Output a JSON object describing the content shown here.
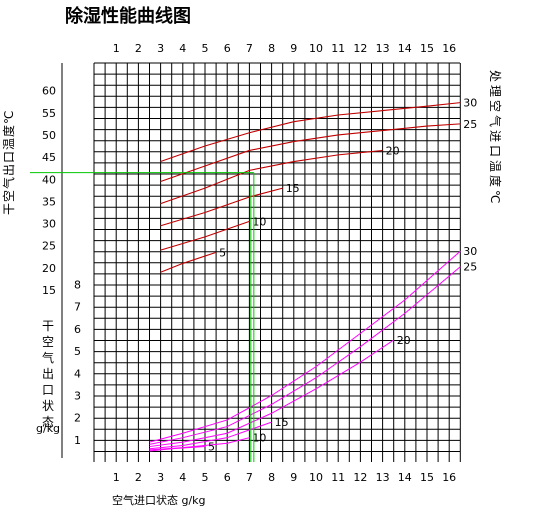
{
  "chart_data": {
    "type": "line",
    "title": "除湿性能曲线图",
    "xlabel": "空气进口状态 g/kg",
    "top_ylabel": "干空气出口温度℃",
    "bottom_ylabel_chars": [
      "干",
      "空",
      "气",
      "出",
      "口",
      "状",
      "态"
    ],
    "bottom_ylabel_unit": "g/kg",
    "right_ylabel": "处理空气进口温度℃",
    "x_ticks": [
      "1",
      "2",
      "3",
      "4",
      "5",
      "6",
      "7",
      "8",
      "9",
      "10",
      "11",
      "12",
      "13",
      "14",
      "15",
      "16"
    ],
    "x_range": [
      0,
      16.5
    ],
    "top_y_ticks": [
      "60",
      "55",
      "50",
      "45",
      "40",
      "35",
      "30",
      "25",
      "20",
      "15"
    ],
    "top_y_range": [
      15,
      65
    ],
    "bottom_y_ticks": [
      "8",
      "7",
      "6",
      "5",
      "4",
      "3",
      "2",
      "1"
    ],
    "bottom_y_range": [
      0,
      8.5
    ],
    "temperature_series": [
      {
        "name": "30",
        "x": [
          3,
          5,
          7,
          9,
          11,
          13,
          15,
          16.5
        ],
        "y": [
          44,
          47.5,
          50.5,
          53,
          54.5,
          55.5,
          56.5,
          57.3
        ]
      },
      {
        "name": "25",
        "x": [
          3,
          5,
          7,
          9,
          11,
          13,
          15,
          16.5
        ],
        "y": [
          39.5,
          43,
          46.5,
          48.5,
          50,
          51,
          52,
          52.5
        ]
      },
      {
        "name": "20",
        "x": [
          3,
          5,
          7,
          9,
          11,
          13
        ],
        "y": [
          34.5,
          38,
          42,
          44,
          45.5,
          46.5
        ]
      },
      {
        "name": "15",
        "x": [
          3,
          5,
          7,
          8.5
        ],
        "y": [
          29.5,
          32.5,
          36,
          38
        ]
      },
      {
        "name": "10",
        "x": [
          3,
          5,
          7
        ],
        "y": [
          24,
          27,
          30.5
        ]
      },
      {
        "name": "5",
        "x": [
          3,
          4,
          5.5
        ],
        "y": [
          19,
          21,
          23.5
        ]
      }
    ],
    "humidity_series": [
      {
        "name": "30",
        "x": [
          2.5,
          4,
          6,
          8,
          10,
          12,
          14,
          16.5
        ],
        "y": [
          0.4,
          0.8,
          1.4,
          2.5,
          3.8,
          5.3,
          6.8,
          9.0
        ]
      },
      {
        "name": "25",
        "x": [
          2.5,
          4,
          6,
          8,
          10,
          12,
          14,
          16.5
        ],
        "y": [
          0.3,
          0.6,
          1.1,
          2.1,
          3.3,
          4.7,
          6.2,
          8.3
        ]
      },
      {
        "name": "20",
        "x": [
          2.5,
          4,
          6,
          8,
          10,
          12,
          13.5
        ],
        "y": [
          0.2,
          0.4,
          0.8,
          1.7,
          2.8,
          4.0,
          5.0
        ]
      },
      {
        "name": "15",
        "x": [
          2.5,
          4,
          6,
          8
        ],
        "y": [
          0.1,
          0.25,
          0.6,
          1.3
        ]
      },
      {
        "name": "10",
        "x": [
          2.5,
          4,
          6,
          7
        ],
        "y": [
          0.05,
          0.15,
          0.35,
          0.6
        ]
      },
      {
        "name": "5",
        "x": [
          2.5,
          3.5,
          5
        ],
        "y": [
          0.0,
          0.1,
          0.2
        ]
      }
    ],
    "example_reading": {
      "x": 7.2,
      "top_y": 41.5,
      "bottom_y": 0.3
    },
    "temperature_curve_color": "#c00000",
    "humidity_curve_color": "#ff00ff",
    "guide_line_color": "#00c800",
    "grid": true
  }
}
